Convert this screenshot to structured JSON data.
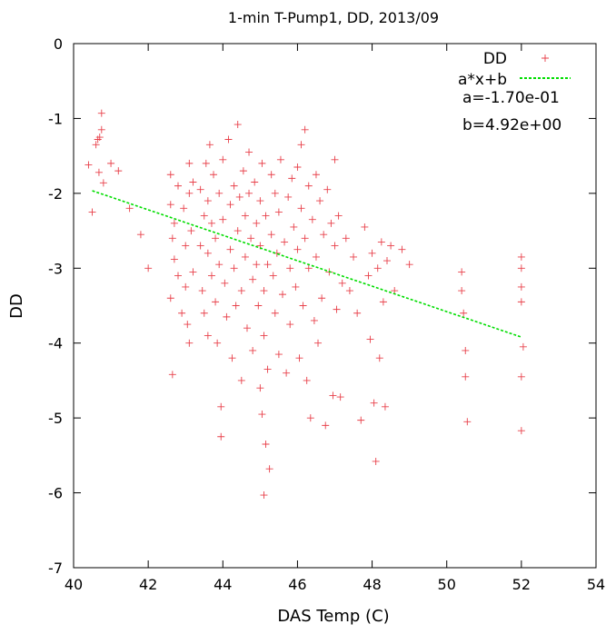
{
  "chart_data": {
    "type": "scatter",
    "title": "1-min T-Pump1, DD, 2013/09",
    "xlabel": "DAS Temp (C)",
    "ylabel": "DD",
    "xlim": [
      40,
      54
    ],
    "ylim": [
      -7,
      0
    ],
    "xticks": [
      "40",
      "42",
      "44",
      "46",
      "48",
      "50",
      "52",
      "54"
    ],
    "yticks": [
      "0",
      "-1",
      "-2",
      "-3",
      "-4",
      "-5",
      "-6",
      "-7"
    ],
    "grid": false,
    "legend_position": "top-right",
    "series": [
      {
        "name": "DD",
        "marker": "plus",
        "color": "#e8404a",
        "points": [
          [
            40.4,
            -1.62
          ],
          [
            40.5,
            -2.25
          ],
          [
            40.6,
            -1.35
          ],
          [
            40.65,
            -1.28
          ],
          [
            40.7,
            -1.25
          ],
          [
            40.75,
            -1.15
          ],
          [
            40.75,
            -0.93
          ],
          [
            40.68,
            -1.72
          ],
          [
            40.8,
            -1.86
          ],
          [
            41.0,
            -1.6
          ],
          [
            41.2,
            -1.7
          ],
          [
            41.5,
            -2.2
          ],
          [
            41.8,
            -2.55
          ],
          [
            42.0,
            -3.0
          ],
          [
            42.6,
            -1.75
          ],
          [
            42.6,
            -2.15
          ],
          [
            42.65,
            -2.6
          ],
          [
            42.7,
            -2.88
          ],
          [
            42.6,
            -3.4
          ],
          [
            42.65,
            -4.42
          ],
          [
            42.7,
            -2.4
          ],
          [
            42.8,
            -1.9
          ],
          [
            42.8,
            -3.1
          ],
          [
            42.9,
            -3.6
          ],
          [
            42.95,
            -2.2
          ],
          [
            43.0,
            -2.7
          ],
          [
            43.0,
            -3.25
          ],
          [
            43.05,
            -3.75
          ],
          [
            43.1,
            -1.6
          ],
          [
            43.1,
            -2.0
          ],
          [
            43.1,
            -4.0
          ],
          [
            43.15,
            -2.5
          ],
          [
            43.2,
            -3.05
          ],
          [
            43.2,
            -1.85
          ],
          [
            43.4,
            -1.95
          ],
          [
            43.4,
            -2.7
          ],
          [
            43.45,
            -3.3
          ],
          [
            43.5,
            -2.3
          ],
          [
            43.5,
            -3.6
          ],
          [
            43.55,
            -1.6
          ],
          [
            43.6,
            -2.1
          ],
          [
            43.6,
            -2.8
          ],
          [
            43.6,
            -3.9
          ],
          [
            43.65,
            -1.35
          ],
          [
            43.7,
            -2.4
          ],
          [
            43.7,
            -3.1
          ],
          [
            43.75,
            -1.75
          ],
          [
            43.8,
            -2.6
          ],
          [
            43.8,
            -3.45
          ],
          [
            43.85,
            -4.0
          ],
          [
            43.9,
            -2.0
          ],
          [
            43.9,
            -2.95
          ],
          [
            43.95,
            -5.25
          ],
          [
            43.95,
            -4.85
          ],
          [
            44.0,
            -1.55
          ],
          [
            44.0,
            -2.35
          ],
          [
            44.05,
            -3.2
          ],
          [
            44.1,
            -3.65
          ],
          [
            44.15,
            -1.28
          ],
          [
            44.2,
            -2.15
          ],
          [
            44.2,
            -2.75
          ],
          [
            44.25,
            -4.2
          ],
          [
            44.3,
            -1.9
          ],
          [
            44.3,
            -3.0
          ],
          [
            44.35,
            -3.5
          ],
          [
            44.4,
            -1.08
          ],
          [
            44.4,
            -2.5
          ],
          [
            44.45,
            -2.05
          ],
          [
            44.5,
            -3.3
          ],
          [
            44.5,
            -4.5
          ],
          [
            44.55,
            -1.7
          ],
          [
            44.6,
            -2.3
          ],
          [
            44.6,
            -2.85
          ],
          [
            44.65,
            -3.8
          ],
          [
            44.7,
            -2.0
          ],
          [
            44.7,
            -1.45
          ],
          [
            44.75,
            -2.6
          ],
          [
            44.8,
            -3.15
          ],
          [
            44.8,
            -4.1
          ],
          [
            44.85,
            -1.85
          ],
          [
            44.9,
            -2.4
          ],
          [
            44.9,
            -2.95
          ],
          [
            44.95,
            -3.5
          ],
          [
            45.0,
            -2.1
          ],
          [
            45.0,
            -2.7
          ],
          [
            45.0,
            -4.6
          ],
          [
            45.05,
            -4.95
          ],
          [
            45.05,
            -1.6
          ],
          [
            45.1,
            -3.3
          ],
          [
            45.1,
            -3.9
          ],
          [
            45.15,
            -2.3
          ],
          [
            45.15,
            -5.35
          ],
          [
            45.2,
            -2.95
          ],
          [
            45.2,
            -4.35
          ],
          [
            45.25,
            -5.68
          ],
          [
            45.1,
            -6.03
          ],
          [
            45.3,
            -1.75
          ],
          [
            45.3,
            -2.55
          ],
          [
            45.35,
            -3.1
          ],
          [
            45.4,
            -2.0
          ],
          [
            45.4,
            -3.6
          ],
          [
            45.45,
            -2.8
          ],
          [
            45.5,
            -2.25
          ],
          [
            45.5,
            -4.15
          ],
          [
            45.55,
            -1.55
          ],
          [
            45.6,
            -3.35
          ],
          [
            45.65,
            -2.65
          ],
          [
            45.7,
            -4.4
          ],
          [
            45.75,
            -2.05
          ],
          [
            45.8,
            -3.0
          ],
          [
            45.8,
            -3.75
          ],
          [
            45.85,
            -1.8
          ],
          [
            45.9,
            -2.45
          ],
          [
            45.95,
            -3.25
          ],
          [
            46.0,
            -1.65
          ],
          [
            46.0,
            -2.75
          ],
          [
            46.05,
            -4.2
          ],
          [
            46.1,
            -1.35
          ],
          [
            46.1,
            -2.2
          ],
          [
            46.15,
            -3.5
          ],
          [
            46.2,
            -1.15
          ],
          [
            46.2,
            -2.6
          ],
          [
            46.25,
            -4.5
          ],
          [
            46.3,
            -1.9
          ],
          [
            46.3,
            -3.0
          ],
          [
            46.35,
            -5.0
          ],
          [
            46.4,
            -2.35
          ],
          [
            46.45,
            -3.7
          ],
          [
            46.5,
            -1.75
          ],
          [
            46.5,
            -2.85
          ],
          [
            46.55,
            -4.0
          ],
          [
            46.6,
            -2.1
          ],
          [
            46.65,
            -3.4
          ],
          [
            46.7,
            -2.55
          ],
          [
            46.75,
            -5.1
          ],
          [
            46.8,
            -1.95
          ],
          [
            46.85,
            -3.05
          ],
          [
            46.9,
            -2.4
          ],
          [
            46.95,
            -4.7
          ],
          [
            47.0,
            -1.55
          ],
          [
            47.0,
            -2.7
          ],
          [
            47.05,
            -3.55
          ],
          [
            47.1,
            -2.3
          ],
          [
            47.15,
            -4.72
          ],
          [
            47.2,
            -3.2
          ],
          [
            47.3,
            -2.6
          ],
          [
            47.4,
            -3.3
          ],
          [
            47.5,
            -2.85
          ],
          [
            47.6,
            -3.6
          ],
          [
            47.7,
            -5.03
          ],
          [
            47.8,
            -2.45
          ],
          [
            47.9,
            -3.1
          ],
          [
            47.95,
            -3.95
          ],
          [
            48.0,
            -2.8
          ],
          [
            48.05,
            -4.8
          ],
          [
            48.1,
            -5.58
          ],
          [
            48.15,
            -3.0
          ],
          [
            48.2,
            -4.2
          ],
          [
            48.25,
            -2.65
          ],
          [
            48.3,
            -3.45
          ],
          [
            48.35,
            -4.85
          ],
          [
            48.4,
            -2.9
          ],
          [
            48.5,
            -2.7
          ],
          [
            48.6,
            -3.3
          ],
          [
            48.8,
            -2.75
          ],
          [
            49.0,
            -2.95
          ],
          [
            50.4,
            -3.05
          ],
          [
            50.4,
            -3.3
          ],
          [
            50.45,
            -3.6
          ],
          [
            50.5,
            -4.1
          ],
          [
            50.5,
            -4.45
          ],
          [
            50.55,
            -5.05
          ],
          [
            52.0,
            -2.85
          ],
          [
            52.0,
            -3.0
          ],
          [
            52.0,
            -3.25
          ],
          [
            52.0,
            -3.45
          ],
          [
            52.05,
            -4.05
          ],
          [
            52.0,
            -4.45
          ],
          [
            52.0,
            -5.17
          ]
        ]
      },
      {
        "name": "a*x+b",
        "color": "#00dd00",
        "style": "dotted",
        "x": [
          40.5,
          52.0
        ],
        "a": -0.17,
        "b": 4.92
      }
    ],
    "annotations": [
      "a=-1.70e-01",
      "b=4.92e+00"
    ]
  }
}
